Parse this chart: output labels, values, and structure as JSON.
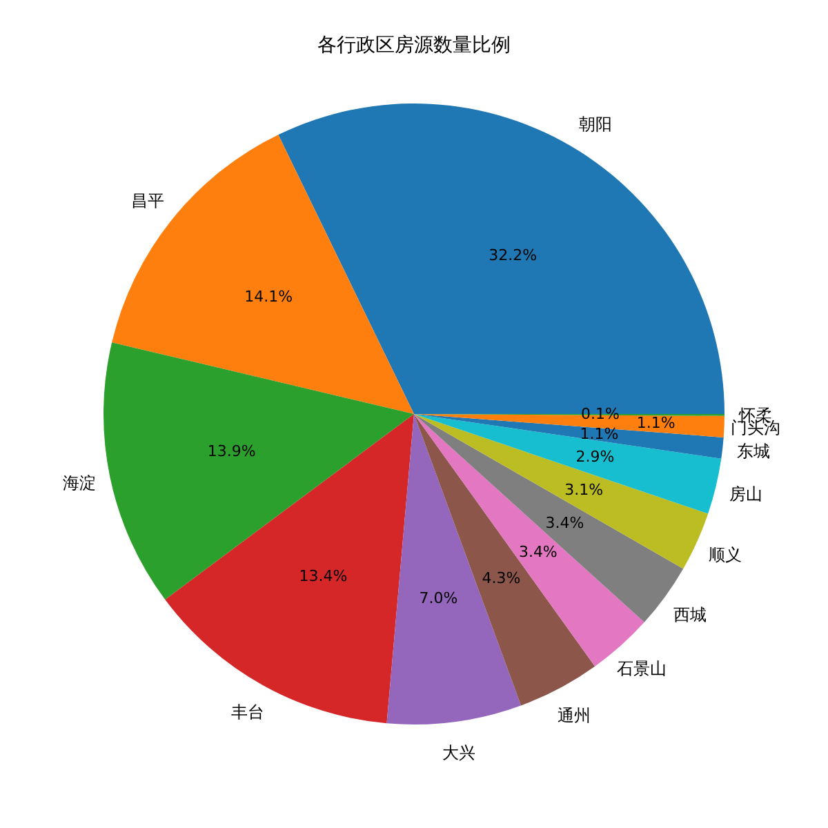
{
  "chart_data": {
    "type": "pie",
    "title": "各行政区房源数量比例",
    "categories": [
      "朝阳",
      "昌平",
      "海淀",
      "丰台",
      "大兴",
      "通州",
      "石景山",
      "西城",
      "顺义",
      "房山",
      "东城",
      "门头沟",
      "怀柔"
    ],
    "values": [
      32.2,
      14.1,
      13.9,
      13.4,
      7.0,
      4.3,
      3.4,
      3.4,
      3.1,
      2.9,
      1.1,
      1.1,
      0.1
    ],
    "value_labels": [
      "32.2%",
      "14.1%",
      "13.9%",
      "13.4%",
      "7.0%",
      "4.3%",
      "3.4%",
      "3.4%",
      "3.1%",
      "2.9%",
      "1.1%",
      "1.1%",
      "0.1%"
    ],
    "colors": [
      "#1f77b4",
      "#ff7f0e",
      "#2ca02c",
      "#d62728",
      "#9467bd",
      "#8c564b",
      "#e377c2",
      "#7f7f7f",
      "#bcbd22",
      "#17becf",
      "#1f77b4",
      "#ff7f0e",
      "#2ca02c"
    ]
  }
}
